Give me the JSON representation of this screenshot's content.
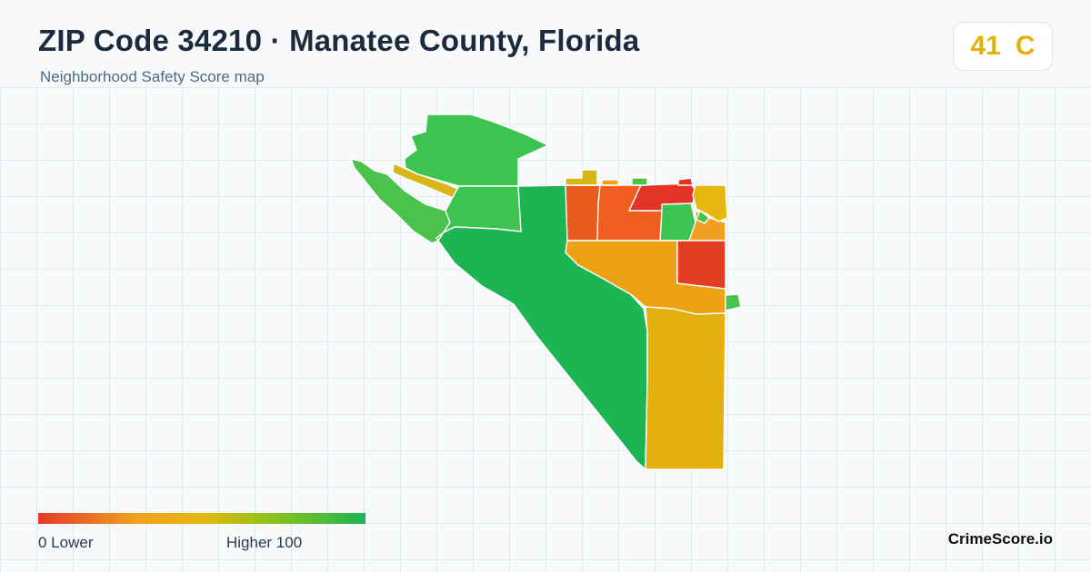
{
  "header": {
    "title": "ZIP Code 34210 · Manatee County, Florida",
    "subtitle": "Neighborhood Safety Score map"
  },
  "score": {
    "value": "41",
    "grade": "C",
    "color": "#e3b00e"
  },
  "legend": {
    "min_label": "0  Lower",
    "max_label": "Higher  100",
    "min": 0,
    "max": 100,
    "gradient": [
      "#e23b2a",
      "#f0a020",
      "#e6b70f",
      "#88c21e",
      "#1db454"
    ]
  },
  "brand": "CrimeScore.io",
  "map": {
    "regions": [
      {
        "name": "north-key-tract",
        "color": "#3bc44f"
      },
      {
        "name": "west-point-strip",
        "color": "#49c34c"
      },
      {
        "name": "northwest-beach-band",
        "color": "#d8b617"
      },
      {
        "name": "inner-key-tract",
        "color": "#3bc44f"
      },
      {
        "name": "south-key-tract",
        "color": "#1db454"
      },
      {
        "name": "east-small-tract",
        "color": "#3bc44f"
      },
      {
        "name": "northeast-red-west",
        "color": "#ea5a1e"
      },
      {
        "name": "northeast-red-center",
        "color": "#ef5d1f"
      },
      {
        "name": "northeast-red-north",
        "color": "#e33327"
      },
      {
        "name": "northeast-orange-pocket",
        "color": "#f0a020"
      },
      {
        "name": "northeast-yellow-corner",
        "color": "#e6b70f"
      },
      {
        "name": "northeast-green-pocket",
        "color": "#49c34c"
      },
      {
        "name": "central-orange-tract",
        "color": "#eda215"
      },
      {
        "name": "east-red-tract",
        "color": "#e33e23"
      },
      {
        "name": "east-green-sliver",
        "color": "#49c34c"
      },
      {
        "name": "southeast-yellow-tract",
        "color": "#e3b00e"
      },
      {
        "name": "northeast-nub-yellow",
        "color": "#d8b617"
      },
      {
        "name": "northeast-nub-green",
        "color": "#49c34c"
      },
      {
        "name": "northeast-nub-red",
        "color": "#e33327"
      },
      {
        "name": "northeast-nub-orange",
        "color": "#f0a020"
      }
    ]
  }
}
